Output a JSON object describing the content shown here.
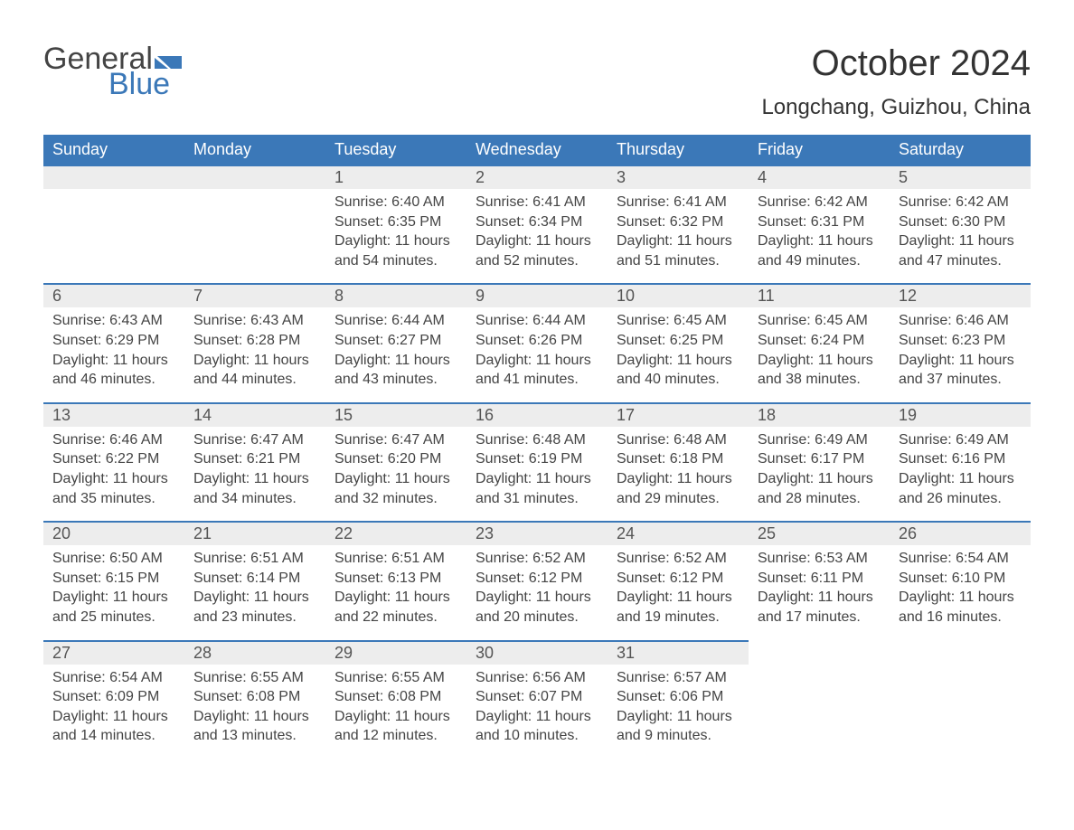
{
  "brand": {
    "word1": "General",
    "word2": "Blue",
    "flag_color": "#3b78b8"
  },
  "title": "October 2024",
  "location": "Longchang, Guizhou, China",
  "colors": {
    "header_bg": "#3b78b8",
    "header_text": "#ffffff",
    "daynum_bg": "#ededed",
    "row_border": "#3b78b8",
    "body_text": "#444444",
    "page_bg": "#ffffff"
  },
  "typography": {
    "title_fontsize": 40,
    "location_fontsize": 24,
    "header_fontsize": 18,
    "cell_fontsize": 16
  },
  "weekdays": [
    "Sunday",
    "Monday",
    "Tuesday",
    "Wednesday",
    "Thursday",
    "Friday",
    "Saturday"
  ],
  "weeks": [
    [
      null,
      null,
      {
        "day": "1",
        "sunrise": "6:40 AM",
        "sunset": "6:35 PM",
        "daylight": "11 hours and 54 minutes."
      },
      {
        "day": "2",
        "sunrise": "6:41 AM",
        "sunset": "6:34 PM",
        "daylight": "11 hours and 52 minutes."
      },
      {
        "day": "3",
        "sunrise": "6:41 AM",
        "sunset": "6:32 PM",
        "daylight": "11 hours and 51 minutes."
      },
      {
        "day": "4",
        "sunrise": "6:42 AM",
        "sunset": "6:31 PM",
        "daylight": "11 hours and 49 minutes."
      },
      {
        "day": "5",
        "sunrise": "6:42 AM",
        "sunset": "6:30 PM",
        "daylight": "11 hours and 47 minutes."
      }
    ],
    [
      {
        "day": "6",
        "sunrise": "6:43 AM",
        "sunset": "6:29 PM",
        "daylight": "11 hours and 46 minutes."
      },
      {
        "day": "7",
        "sunrise": "6:43 AM",
        "sunset": "6:28 PM",
        "daylight": "11 hours and 44 minutes."
      },
      {
        "day": "8",
        "sunrise": "6:44 AM",
        "sunset": "6:27 PM",
        "daylight": "11 hours and 43 minutes."
      },
      {
        "day": "9",
        "sunrise": "6:44 AM",
        "sunset": "6:26 PM",
        "daylight": "11 hours and 41 minutes."
      },
      {
        "day": "10",
        "sunrise": "6:45 AM",
        "sunset": "6:25 PM",
        "daylight": "11 hours and 40 minutes."
      },
      {
        "day": "11",
        "sunrise": "6:45 AM",
        "sunset": "6:24 PM",
        "daylight": "11 hours and 38 minutes."
      },
      {
        "day": "12",
        "sunrise": "6:46 AM",
        "sunset": "6:23 PM",
        "daylight": "11 hours and 37 minutes."
      }
    ],
    [
      {
        "day": "13",
        "sunrise": "6:46 AM",
        "sunset": "6:22 PM",
        "daylight": "11 hours and 35 minutes."
      },
      {
        "day": "14",
        "sunrise": "6:47 AM",
        "sunset": "6:21 PM",
        "daylight": "11 hours and 34 minutes."
      },
      {
        "day": "15",
        "sunrise": "6:47 AM",
        "sunset": "6:20 PM",
        "daylight": "11 hours and 32 minutes."
      },
      {
        "day": "16",
        "sunrise": "6:48 AM",
        "sunset": "6:19 PM",
        "daylight": "11 hours and 31 minutes."
      },
      {
        "day": "17",
        "sunrise": "6:48 AM",
        "sunset": "6:18 PM",
        "daylight": "11 hours and 29 minutes."
      },
      {
        "day": "18",
        "sunrise": "6:49 AM",
        "sunset": "6:17 PM",
        "daylight": "11 hours and 28 minutes."
      },
      {
        "day": "19",
        "sunrise": "6:49 AM",
        "sunset": "6:16 PM",
        "daylight": "11 hours and 26 minutes."
      }
    ],
    [
      {
        "day": "20",
        "sunrise": "6:50 AM",
        "sunset": "6:15 PM",
        "daylight": "11 hours and 25 minutes."
      },
      {
        "day": "21",
        "sunrise": "6:51 AM",
        "sunset": "6:14 PM",
        "daylight": "11 hours and 23 minutes."
      },
      {
        "day": "22",
        "sunrise": "6:51 AM",
        "sunset": "6:13 PM",
        "daylight": "11 hours and 22 minutes."
      },
      {
        "day": "23",
        "sunrise": "6:52 AM",
        "sunset": "6:12 PM",
        "daylight": "11 hours and 20 minutes."
      },
      {
        "day": "24",
        "sunrise": "6:52 AM",
        "sunset": "6:12 PM",
        "daylight": "11 hours and 19 minutes."
      },
      {
        "day": "25",
        "sunrise": "6:53 AM",
        "sunset": "6:11 PM",
        "daylight": "11 hours and 17 minutes."
      },
      {
        "day": "26",
        "sunrise": "6:54 AM",
        "sunset": "6:10 PM",
        "daylight": "11 hours and 16 minutes."
      }
    ],
    [
      {
        "day": "27",
        "sunrise": "6:54 AM",
        "sunset": "6:09 PM",
        "daylight": "11 hours and 14 minutes."
      },
      {
        "day": "28",
        "sunrise": "6:55 AM",
        "sunset": "6:08 PM",
        "daylight": "11 hours and 13 minutes."
      },
      {
        "day": "29",
        "sunrise": "6:55 AM",
        "sunset": "6:08 PM",
        "daylight": "11 hours and 12 minutes."
      },
      {
        "day": "30",
        "sunrise": "6:56 AM",
        "sunset": "6:07 PM",
        "daylight": "11 hours and 10 minutes."
      },
      {
        "day": "31",
        "sunrise": "6:57 AM",
        "sunset": "6:06 PM",
        "daylight": "11 hours and 9 minutes."
      },
      null,
      null
    ]
  ],
  "labels": {
    "sunrise": "Sunrise:",
    "sunset": "Sunset:",
    "daylight": "Daylight:"
  }
}
